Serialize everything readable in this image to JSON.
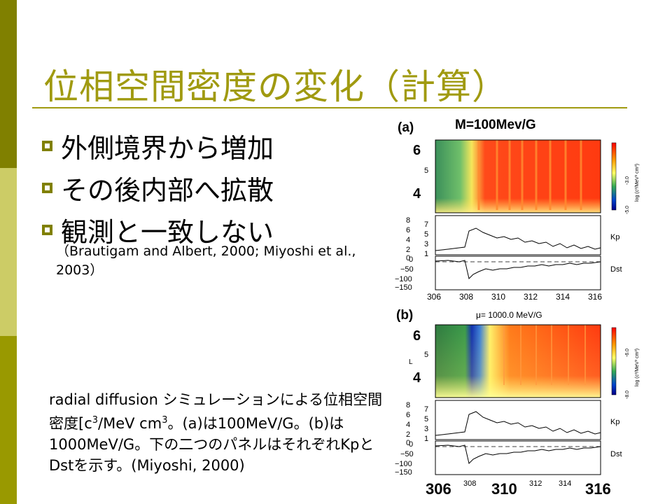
{
  "slide": {
    "title": "位相空間密度の変化（計算）",
    "bullets": [
      {
        "text": "外側境界から増加"
      },
      {
        "text": "その後内部へ拡散"
      },
      {
        "text": "観測と一致しない"
      }
    ],
    "citation": "（Brautigam and Albert, 2000; Miyoshi et al., 2003）",
    "caption": {
      "part1": "radial diffusion シミュレーションによる位相空間密度[c",
      "sup1": "3",
      "part2": "/MeV cm",
      "sup2": "3",
      "part3": "。(a)は100MeV/G。(b)は1000MeV/G。下の二つのパネルはそれぞれKpとDstを示す。(Miyoshi, 2000)"
    }
  },
  "colors": {
    "side_bar_dark": "#808000",
    "side_bar_light": "#cccc66",
    "title": "#a09a10",
    "bullet_marker": "#808000"
  },
  "figure": {
    "panel_a": {
      "label": "(a)",
      "header": "M=100Mev/G",
      "y_ticks_big": [
        "6",
        "4"
      ],
      "y_ticks_small": [
        "5"
      ],
      "colorbar_ticks": [
        "-3.0",
        "-5.0"
      ],
      "colorbar_label": "log (c³/MeV³ cm³)",
      "kp_label": "Kp",
      "kp_ticks": [
        "8",
        "6",
        "4",
        "2",
        "0"
      ],
      "kp_ticks_right": [
        "7",
        "5",
        "3",
        "1"
      ],
      "dst_label": "Dst",
      "dst_ticks": [
        "0",
        "−50",
        "−100",
        "−150"
      ],
      "x_ticks": [
        "306",
        "308",
        "310",
        "312",
        "314",
        "316"
      ]
    },
    "panel_b": {
      "label": "(b)",
      "header": "μ= 1000.0 MeV/G",
      "y_ticks_big": [
        "6",
        "4"
      ],
      "y_ticks_small": [
        "5",
        "L"
      ],
      "colorbar_ticks": [
        "-6.0",
        "-8.0"
      ],
      "colorbar_label": "log (c³/MeV³ cm³)",
      "kp_label": "Kp",
      "kp_ticks": [
        "8",
        "6",
        "4",
        "2",
        "0"
      ],
      "kp_ticks_right": [
        "7",
        "5",
        "3",
        "1"
      ],
      "dst_label": "Dst",
      "dst_ticks": [
        "0",
        "−50",
        "−100",
        "−150"
      ],
      "x_ticks_big": [
        "306",
        "310",
        "316"
      ],
      "x_ticks_small": [
        "308",
        "312",
        "314"
      ]
    }
  }
}
